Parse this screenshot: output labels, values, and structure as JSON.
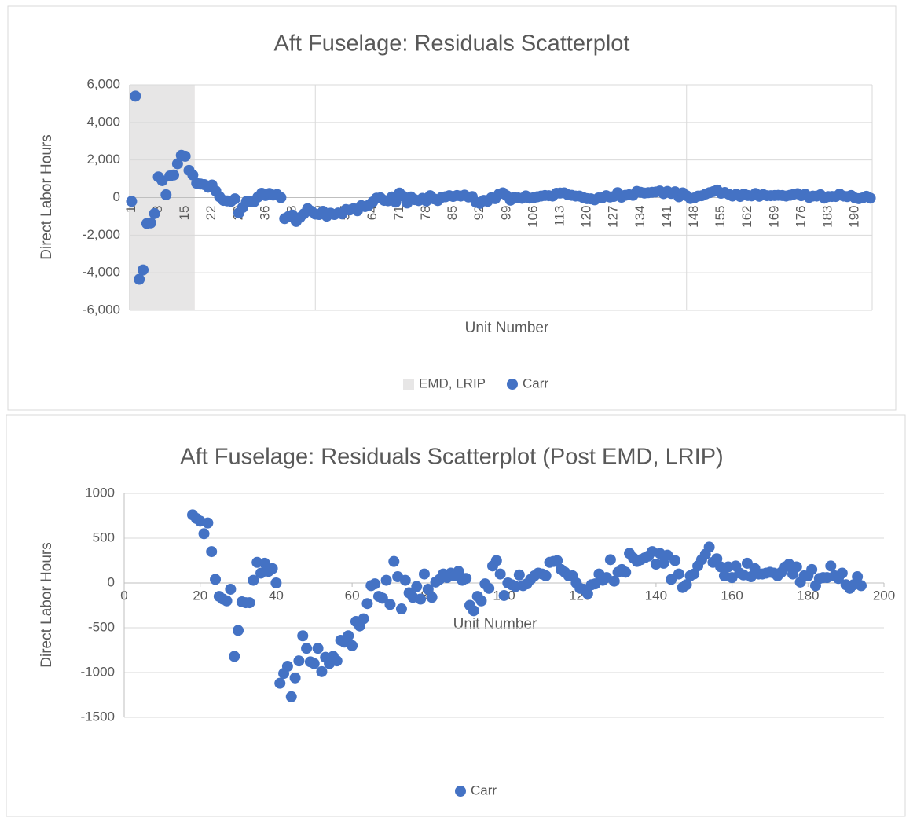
{
  "chart_data": [
    {
      "type": "scatter",
      "title": "Aft Fuselage: Residuals Scatterplot",
      "x_label": "Unit Number",
      "y_label": "Direct Labor Hours",
      "categories": [
        1,
        null,
        null,
        null,
        null,
        null,
        null,
        8,
        null,
        null,
        null,
        null,
        null,
        null,
        15,
        null,
        null,
        null,
        null,
        null,
        null,
        22,
        null,
        null,
        null,
        null,
        null,
        null,
        29,
        null,
        null,
        null,
        null,
        null,
        null,
        36,
        null,
        null,
        null,
        null,
        null,
        null,
        43,
        null,
        null,
        null,
        null,
        null,
        null,
        50,
        null,
        null,
        null,
        null,
        null,
        null,
        57,
        null,
        null,
        null,
        null,
        null,
        null,
        64,
        null,
        null,
        null,
        null,
        null,
        null,
        71,
        null,
        null,
        null,
        null,
        null,
        null,
        78,
        null,
        null,
        null,
        null,
        null,
        null,
        85,
        null,
        null,
        null,
        null,
        null,
        null,
        92,
        null,
        null,
        null,
        null,
        null,
        null,
        99,
        null,
        null,
        null,
        null,
        null,
        null,
        106,
        null,
        null,
        null,
        null,
        null,
        null,
        113,
        null,
        null,
        null,
        null,
        null,
        null,
        120,
        null,
        null,
        null,
        null,
        null,
        null,
        127,
        null,
        null,
        null,
        null,
        null,
        null,
        134,
        null,
        null,
        null,
        null,
        null,
        null,
        141,
        null,
        null,
        null,
        null,
        null,
        null,
        148,
        null,
        null,
        null,
        null,
        null,
        null,
        155,
        null,
        null,
        null,
        null,
        null,
        null,
        162,
        null,
        null,
        null,
        null,
        null,
        null,
        169,
        null,
        null,
        null,
        null,
        null,
        null,
        176,
        null,
        null,
        null,
        null,
        null,
        null,
        183,
        null,
        null,
        null,
        null,
        null,
        null,
        190,
        null,
        null,
        null,
        null
      ],
      "band": {
        "name": "EMD, LRIP",
        "color": "#e7e6e6",
        "x": [
          1,
          17
        ]
      },
      "series": [
        {
          "name": "Carr",
          "color": "#4472c4",
          "values": [
            -200,
            5400,
            -4350,
            -3850,
            -1380,
            -1350,
            -850,
            1100,
            900,
            150,
            1150,
            1200,
            1800,
            2250,
            2200,
            1450,
            1200,
            760,
            720,
            690,
            550,
            670,
            350,
            40,
            -150,
            -180,
            -200,
            -70,
            -820,
            -530,
            -210,
            -220,
            -220,
            30,
            230,
            110,
            220,
            130,
            160,
            0,
            -1120,
            -1010,
            -930,
            -1270,
            -1060,
            -870,
            -590,
            -730,
            -880,
            -900,
            -730,
            -990,
            -830,
            -900,
            -820,
            -870,
            -640,
            -660,
            -590,
            -700,
            -430,
            -480,
            -400,
            -230,
            -30,
            -10,
            -150,
            -170,
            30,
            -240,
            240,
            70,
            -290,
            30,
            -110,
            -160,
            -40,
            -180,
            100,
            -70,
            -160,
            10,
            40,
            100,
            60,
            110,
            80,
            130,
            30,
            50,
            -250,
            -310,
            -150,
            -200,
            -10,
            -60,
            190,
            250,
            100,
            -140,
            0,
            -20,
            -40,
            90,
            -30,
            -10,
            40,
            80,
            110,
            100,
            80,
            230,
            240,
            250,
            150,
            120,
            80,
            80,
            0,
            -60,
            -70,
            -120,
            -20,
            -10,
            100,
            30,
            60,
            260,
            20,
            120,
            150,
            120,
            330,
            280,
            240,
            260,
            280,
            300,
            350,
            210,
            330,
            220,
            310,
            40,
            250,
            100,
            -50,
            -20,
            80,
            100,
            190,
            260,
            320,
            400,
            230,
            270,
            180,
            80,
            180,
            60,
            190,
            110,
            90,
            220,
            70,
            160,
            100,
            100,
            110,
            120,
            110,
            80,
            120,
            180,
            210,
            100,
            180,
            10,
            80,
            80,
            150,
            -30,
            50,
            60,
            60,
            190,
            80,
            50,
            110,
            -20,
            -60,
            -20,
            70,
            -30
          ]
        }
      ],
      "ylim": [
        -6000,
        6000
      ],
      "yticks": [
        {
          "value": -6000,
          "label": "-6,000"
        },
        {
          "value": -4000,
          "label": "-4,000"
        },
        {
          "value": -2000,
          "label": "-2,000"
        },
        0,
        {
          "value": 2000,
          "label": "2,000"
        },
        {
          "value": 4000,
          "label": "4,000"
        },
        {
          "value": 6000,
          "label": "6,000"
        }
      ],
      "grid": true,
      "legend": "bottom"
    },
    {
      "type": "scatter",
      "title": "Aft Fuselage: Residuals Scatterplot (Post EMD, LRIP)",
      "x_label": "Unit Number",
      "y_label": "Direct Labor Hours",
      "x": [
        18,
        19,
        20,
        21,
        22,
        23,
        24,
        25,
        26,
        27,
        28,
        29,
        30,
        31,
        32,
        33,
        34,
        35,
        36,
        37,
        38,
        39,
        40,
        41,
        42,
        43,
        44,
        45,
        46,
        47,
        48,
        49,
        50,
        51,
        52,
        53,
        54,
        55,
        56,
        57,
        58,
        59,
        60,
        61,
        62,
        63,
        64,
        65,
        66,
        67,
        68,
        69,
        70,
        71,
        72,
        73,
        74,
        75,
        76,
        77,
        78,
        79,
        80,
        81,
        82,
        83,
        84,
        85,
        86,
        87,
        88,
        89,
        90,
        91,
        92,
        93,
        94,
        95,
        96,
        97,
        98,
        99,
        100,
        101,
        102,
        103,
        104,
        105,
        106,
        107,
        108,
        109,
        110,
        111,
        112,
        113,
        114,
        115,
        116,
        117,
        118,
        119,
        120,
        121,
        122,
        123,
        124,
        125,
        126,
        127,
        128,
        129,
        130,
        131,
        132,
        133,
        134,
        135,
        136,
        137,
        138,
        139,
        140,
        141,
        142,
        143,
        144,
        145,
        146,
        147,
        148,
        149,
        150,
        151,
        152,
        153,
        154,
        155,
        156,
        157,
        158,
        159,
        160,
        161,
        162,
        163,
        164,
        165,
        166,
        167,
        168,
        169,
        170,
        171,
        172,
        173,
        174,
        175,
        176,
        177,
        178,
        179,
        180,
        181,
        182,
        183,
        184,
        185,
        186,
        187,
        188,
        189,
        190,
        191,
        192,
        193,
        194
      ],
      "series": [
        {
          "name": "Carr",
          "color": "#4472c4",
          "values": [
            760,
            720,
            690,
            550,
            670,
            350,
            40,
            -150,
            -180,
            -200,
            -70,
            -820,
            -530,
            -210,
            -220,
            -220,
            30,
            230,
            110,
            220,
            130,
            160,
            0,
            -1120,
            -1010,
            -930,
            -1270,
            -1060,
            -870,
            -590,
            -730,
            -880,
            -900,
            -730,
            -990,
            -830,
            -900,
            -820,
            -870,
            -640,
            -660,
            -590,
            -700,
            -430,
            -480,
            -400,
            -230,
            -30,
            -10,
            -150,
            -170,
            30,
            -240,
            240,
            70,
            -290,
            30,
            -110,
            -160,
            -40,
            -180,
            100,
            -70,
            -160,
            10,
            40,
            100,
            60,
            110,
            80,
            130,
            30,
            50,
            -250,
            -310,
            -150,
            -200,
            -10,
            -60,
            190,
            250,
            100,
            -140,
            0,
            -20,
            -40,
            90,
            -30,
            -10,
            40,
            80,
            110,
            100,
            80,
            230,
            240,
            250,
            150,
            120,
            80,
            80,
            0,
            -60,
            -70,
            -120,
            -20,
            -10,
            100,
            30,
            60,
            260,
            20,
            120,
            150,
            120,
            330,
            280,
            240,
            260,
            280,
            300,
            350,
            210,
            330,
            220,
            310,
            40,
            250,
            100,
            -50,
            -20,
            80,
            100,
            190,
            260,
            320,
            400,
            230,
            270,
            180,
            80,
            180,
            60,
            190,
            110,
            90,
            220,
            70,
            160,
            100,
            100,
            110,
            120,
            110,
            80,
            120,
            180,
            210,
            100,
            180,
            10,
            80,
            80,
            150,
            -30,
            50,
            60,
            60,
            190,
            80,
            50,
            110,
            -20,
            -60,
            -20,
            70,
            -30
          ]
        }
      ],
      "xlim": [
        0,
        200
      ],
      "xticks": [
        0,
        20,
        40,
        60,
        80,
        100,
        120,
        140,
        160,
        180,
        200
      ],
      "ylim": [
        -1500,
        1000
      ],
      "yticks": [
        -1500,
        -1000,
        -500,
        0,
        500,
        1000
      ],
      "grid": true,
      "legend": "bottom"
    }
  ]
}
